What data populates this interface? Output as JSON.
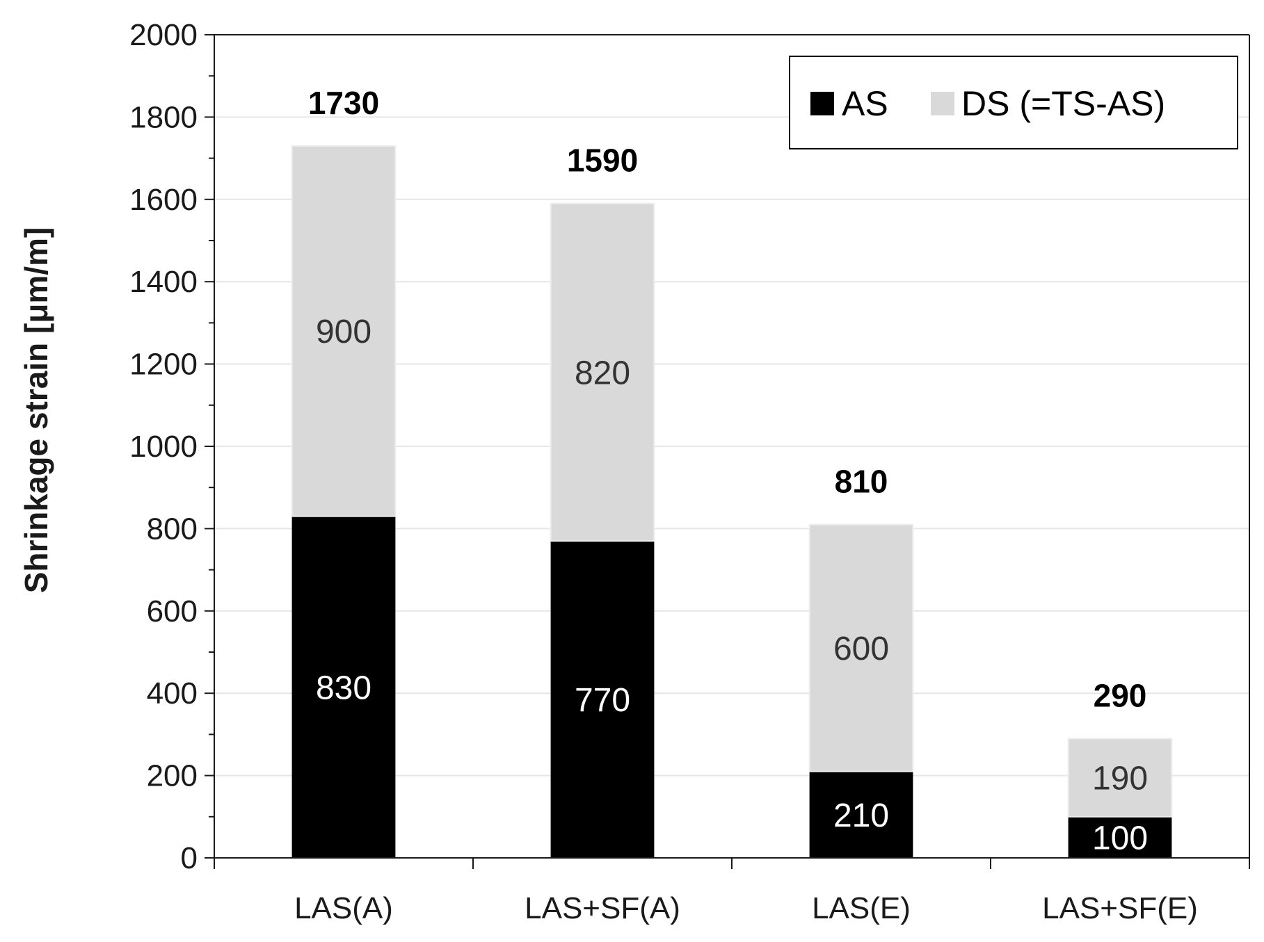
{
  "chart_data": {
    "type": "bar",
    "stacked": true,
    "title": "",
    "xlabel": "",
    "ylabel": "Shrinkage strain  [μm/m]",
    "ylim": [
      0,
      2000
    ],
    "ytick_step": 200,
    "yticks": [
      "0",
      "200",
      "400",
      "600",
      "800",
      "1000",
      "1200",
      "1400",
      "1600",
      "1800",
      "2000"
    ],
    "grid": true,
    "legend_position": "top-right",
    "categories": [
      "LAS(A)",
      "LAS+SF(A)",
      "LAS(E)",
      "LAS+SF(E)"
    ],
    "series": [
      {
        "name": "AS",
        "color": "#000000",
        "label_color": "#ffffff",
        "values": [
          830,
          770,
          210,
          100
        ]
      },
      {
        "name": "DS (=TS-AS)",
        "color": "#d9d9d9",
        "label_color": "#333333",
        "values": [
          900,
          820,
          600,
          190
        ]
      }
    ],
    "totals": [
      1730,
      1590,
      810,
      290
    ]
  }
}
